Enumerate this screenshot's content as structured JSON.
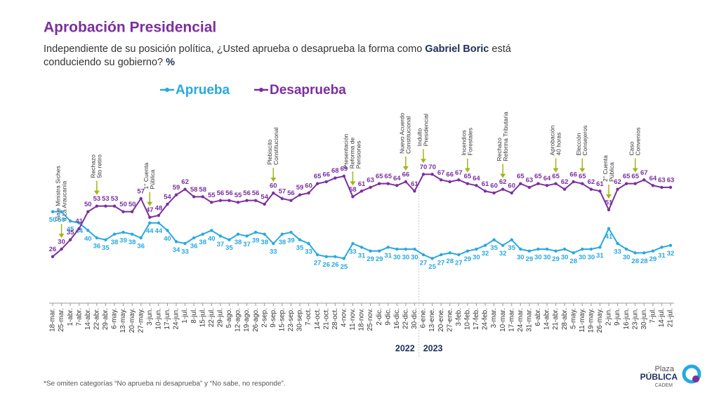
{
  "chart_data": {
    "type": "line",
    "title": "Aprobación Presidencial",
    "subtitle": [
      {
        "text": "Independiente de su posición política, ¿Usted aprueba o desaprueba la forma como ",
        "bold": false
      },
      {
        "text": "Gabriel Boric",
        "bold": true
      },
      {
        "text": " está",
        "bold": false
      },
      {
        "text": "conduciendo su gobierno? ",
        "bold": false,
        "newline": true
      },
      {
        "text": "%",
        "bold": true
      }
    ],
    "categories": [
      "18-mar.",
      "25-mar.",
      "1-abr.",
      "7-abr.",
      "14-abr.",
      "22-abr.",
      "29-abr.",
      "6-may.",
      "13-may.",
      "20-may.",
      "27-may.",
      "3-jun.",
      "10-jun.",
      "17-jun.",
      "24-jun.",
      "1-jul.",
      "8-jul.",
      "15-jul.",
      "22-jul.",
      "29-jul.",
      "5-ago.",
      "12-ago.",
      "19-ago.",
      "26-ago.",
      "2-sep.",
      "9-sep.",
      "15-sep.",
      "23-sep.",
      "30-sep.",
      "7-oct.",
      "14-oct.",
      "21-oct.",
      "28-oct.",
      "4-nov.",
      "11-nov.",
      "18-nov.",
      "25-nov.",
      "2-dic.",
      "9-dic.",
      "16-dic.",
      "22-dic.",
      "30-dic.",
      "6-ene.",
      "13-ene.",
      "20-ene.",
      "27-ene.",
      "3-feb.",
      "10-feb.",
      "17-feb.",
      "24-feb.",
      "3-mar.",
      "10-mar.",
      "17-mar.",
      "24-mar.",
      "31-mar.",
      "6-abr.",
      "14-abr.",
      "21-abr.",
      "28-abr.",
      "5-may.",
      "11-may.",
      "19-may.",
      "26-may.",
      "2-jun.",
      "9-jun.",
      "16-jun.",
      "23-jun.",
      "30-jun.",
      "7-jul.",
      "14-jul.",
      "21-jul."
    ],
    "series": [
      {
        "name": "Aprueba",
        "color": "#29a8df",
        "label_side": "below",
        "values": [
          50,
          50,
          45,
          44,
          40,
          36,
          35,
          38,
          39,
          38,
          36,
          44,
          44,
          40,
          34,
          33,
          36,
          38,
          40,
          37,
          35,
          38,
          37,
          39,
          38,
          33,
          38,
          39,
          35,
          33,
          27,
          26,
          26,
          25,
          33,
          31,
          29,
          29,
          31,
          30,
          30,
          30,
          27,
          25,
          27,
          28,
          27,
          29,
          30,
          32,
          35,
          32,
          35,
          30,
          29,
          30,
          30,
          29,
          30,
          28,
          30,
          30,
          31,
          41,
          33,
          30,
          28,
          28,
          29,
          31,
          32
        ]
      },
      {
        "name": "Desaprueba",
        "color": "#7b2f9e",
        "label_side": "above",
        "values": [
          26,
          30,
          35,
          41,
          50,
          53,
          53,
          53,
          50,
          50,
          57,
          47,
          48,
          54,
          59,
          62,
          58,
          58,
          55,
          56,
          56,
          55,
          56,
          56,
          54,
          60,
          57,
          56,
          59,
          60,
          65,
          66,
          68,
          69,
          58,
          61,
          63,
          65,
          65,
          64,
          66,
          61,
          70,
          70,
          67,
          66,
          67,
          65,
          64,
          61,
          60,
          62,
          60,
          65,
          63,
          65,
          64,
          65,
          62,
          66,
          65,
          62,
          61,
          51,
          62,
          65,
          65,
          67,
          64,
          63,
          63
        ]
      }
    ],
    "ylim": [
      15,
      75
    ],
    "annotations": [
      {
        "category": "25-mar.",
        "lines": [
          "Viaje Ministra Siches",
          "a La Araucanía"
        ]
      },
      {
        "category": "22-abr.",
        "lines": [
          "Rechazo",
          "5to retiro"
        ]
      },
      {
        "category": "3-jun.",
        "lines": [
          "1° Cuenta",
          "Pública"
        ]
      },
      {
        "category": "9-sep.",
        "lines": [
          "Plebiscito",
          "Constitucional"
        ]
      },
      {
        "category": "11-nov.",
        "lines": [
          "Presentación",
          "Reforma de",
          "Pensiones"
        ]
      },
      {
        "category": "22-dic.",
        "lines": [
          "Nuevo Acuerdo",
          "Constitucional"
        ]
      },
      {
        "category": "6-ene.",
        "lines": [
          "Indulto",
          "Presidencial"
        ]
      },
      {
        "category": "10-feb.",
        "lines": [
          "Incendios",
          "Forestales"
        ]
      },
      {
        "category": "10-mar.",
        "lines": [
          "Rechazo",
          "Reforma Tributaria"
        ]
      },
      {
        "category": "21-abr.",
        "lines": [
          "Aprobación",
          "40 horas"
        ]
      },
      {
        "category": "11-may.",
        "lines": [
          "Elección",
          "Consejeros"
        ]
      },
      {
        "category": "2-jun.",
        "lines": [
          "2° Cuenta",
          "Pública"
        ]
      },
      {
        "category": "23-jun.",
        "lines": [
          "Caso",
          "Convenios"
        ]
      }
    ],
    "years": [
      {
        "label": "2022",
        "category": "30-dic.",
        "side": "left"
      },
      {
        "label": "2023",
        "category": "6-ene.",
        "side": "right"
      }
    ],
    "footnote": "*Se omiten categorías “No aprueba ni desaprueba” y “No sabe, no responde”.",
    "logo": [
      "Plaza",
      "PÚBLICA",
      "CADEM"
    ]
  }
}
